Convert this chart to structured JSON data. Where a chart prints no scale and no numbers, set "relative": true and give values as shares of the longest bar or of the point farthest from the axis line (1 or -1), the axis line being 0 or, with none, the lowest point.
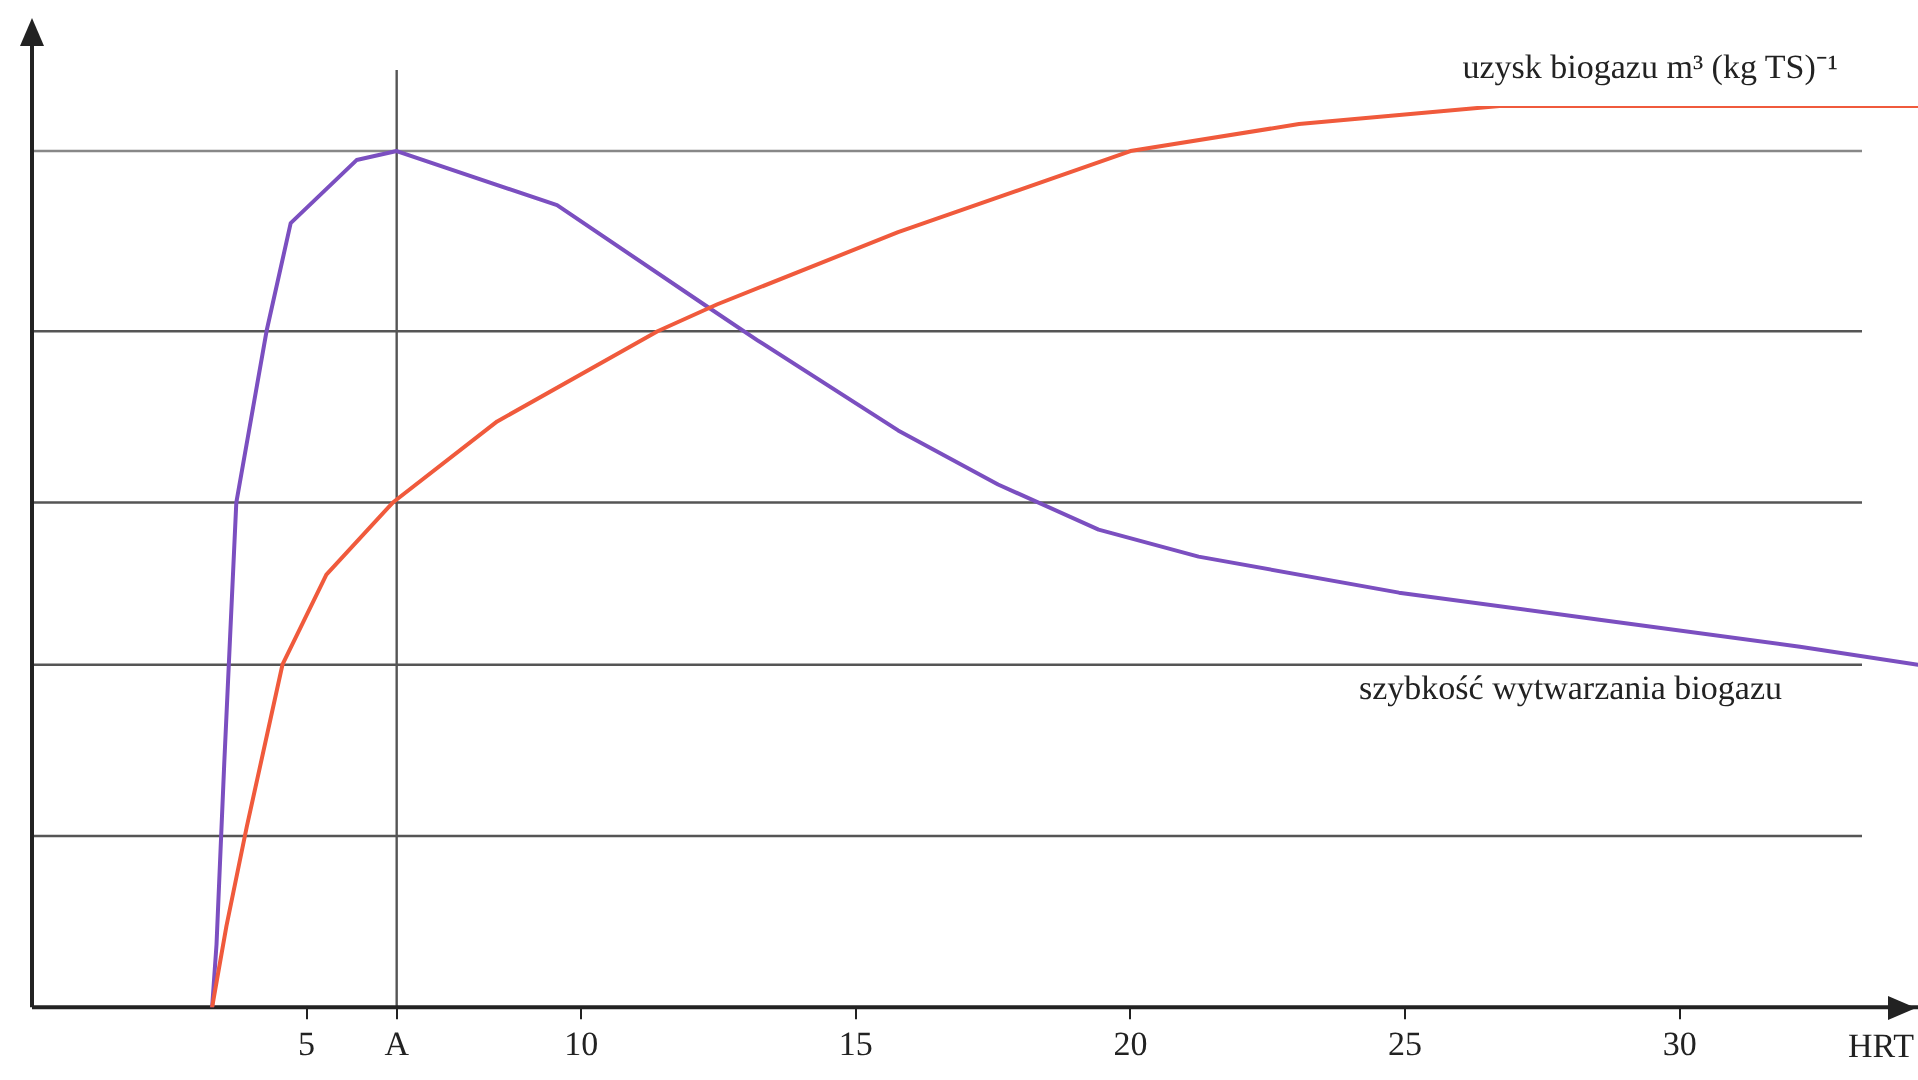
{
  "chart_data": {
    "type": "line",
    "relative": true,
    "xlabel": "HRT",
    "xlim": [
      0,
      34.34
    ],
    "xticks": [
      5,
      {
        "value": 6.64,
        "label": "A"
      },
      10,
      15,
      20,
      25,
      30
    ],
    "grid": false,
    "legend": false,
    "marker": "none",
    "line_style": "solid",
    "series": [
      {
        "name": "uzysk biogazu m³ (kg TS)⁻¹",
        "color": "#f05a3c",
        "x": [
          3.28,
          3.54,
          3.91,
          4.56,
          5.36,
          6.57,
          8.47,
          11.39,
          12.48,
          15.77,
          20.0,
          23.07,
          26.72,
          30.36,
          34.34
        ],
        "values": [
          0,
          0.09,
          0.2,
          0.38,
          0.48,
          0.56,
          0.65,
          0.75,
          0.78,
          0.86,
          0.95,
          0.98,
          1.0,
          1.0,
          1.0
        ]
      },
      {
        "name": "szybkość wytwarzania biogazu",
        "color": "#7b4fc0",
        "x": [
          3.28,
          3.36,
          3.5,
          3.72,
          4.27,
          4.71,
          5.91,
          6.64,
          9.56,
          12.23,
          13.21,
          15.77,
          17.59,
          19.42,
          21.24,
          24.89,
          28.54,
          32.19,
          34.34
        ],
        "values": [
          0,
          0.07,
          0.27,
          0.56,
          0.75,
          0.87,
          0.94,
          0.95,
          0.89,
          0.78,
          0.74,
          0.64,
          0.58,
          0.53,
          0.5,
          0.46,
          0.43,
          0.4,
          0.38
        ]
      }
    ],
    "ref_lines": [
      {
        "axis": "x",
        "value": 6.64,
        "color": "#555555"
      },
      {
        "axis": "y",
        "value": 0.19,
        "color": "#555555"
      },
      {
        "axis": "y",
        "value": 0.38,
        "color": "#555555"
      },
      {
        "axis": "y",
        "value": 0.56,
        "color": "#555555"
      },
      {
        "axis": "y",
        "value": 0.75,
        "color": "#555555"
      },
      {
        "axis": "y",
        "value": 0.95,
        "color": "#888888"
      }
    ]
  }
}
